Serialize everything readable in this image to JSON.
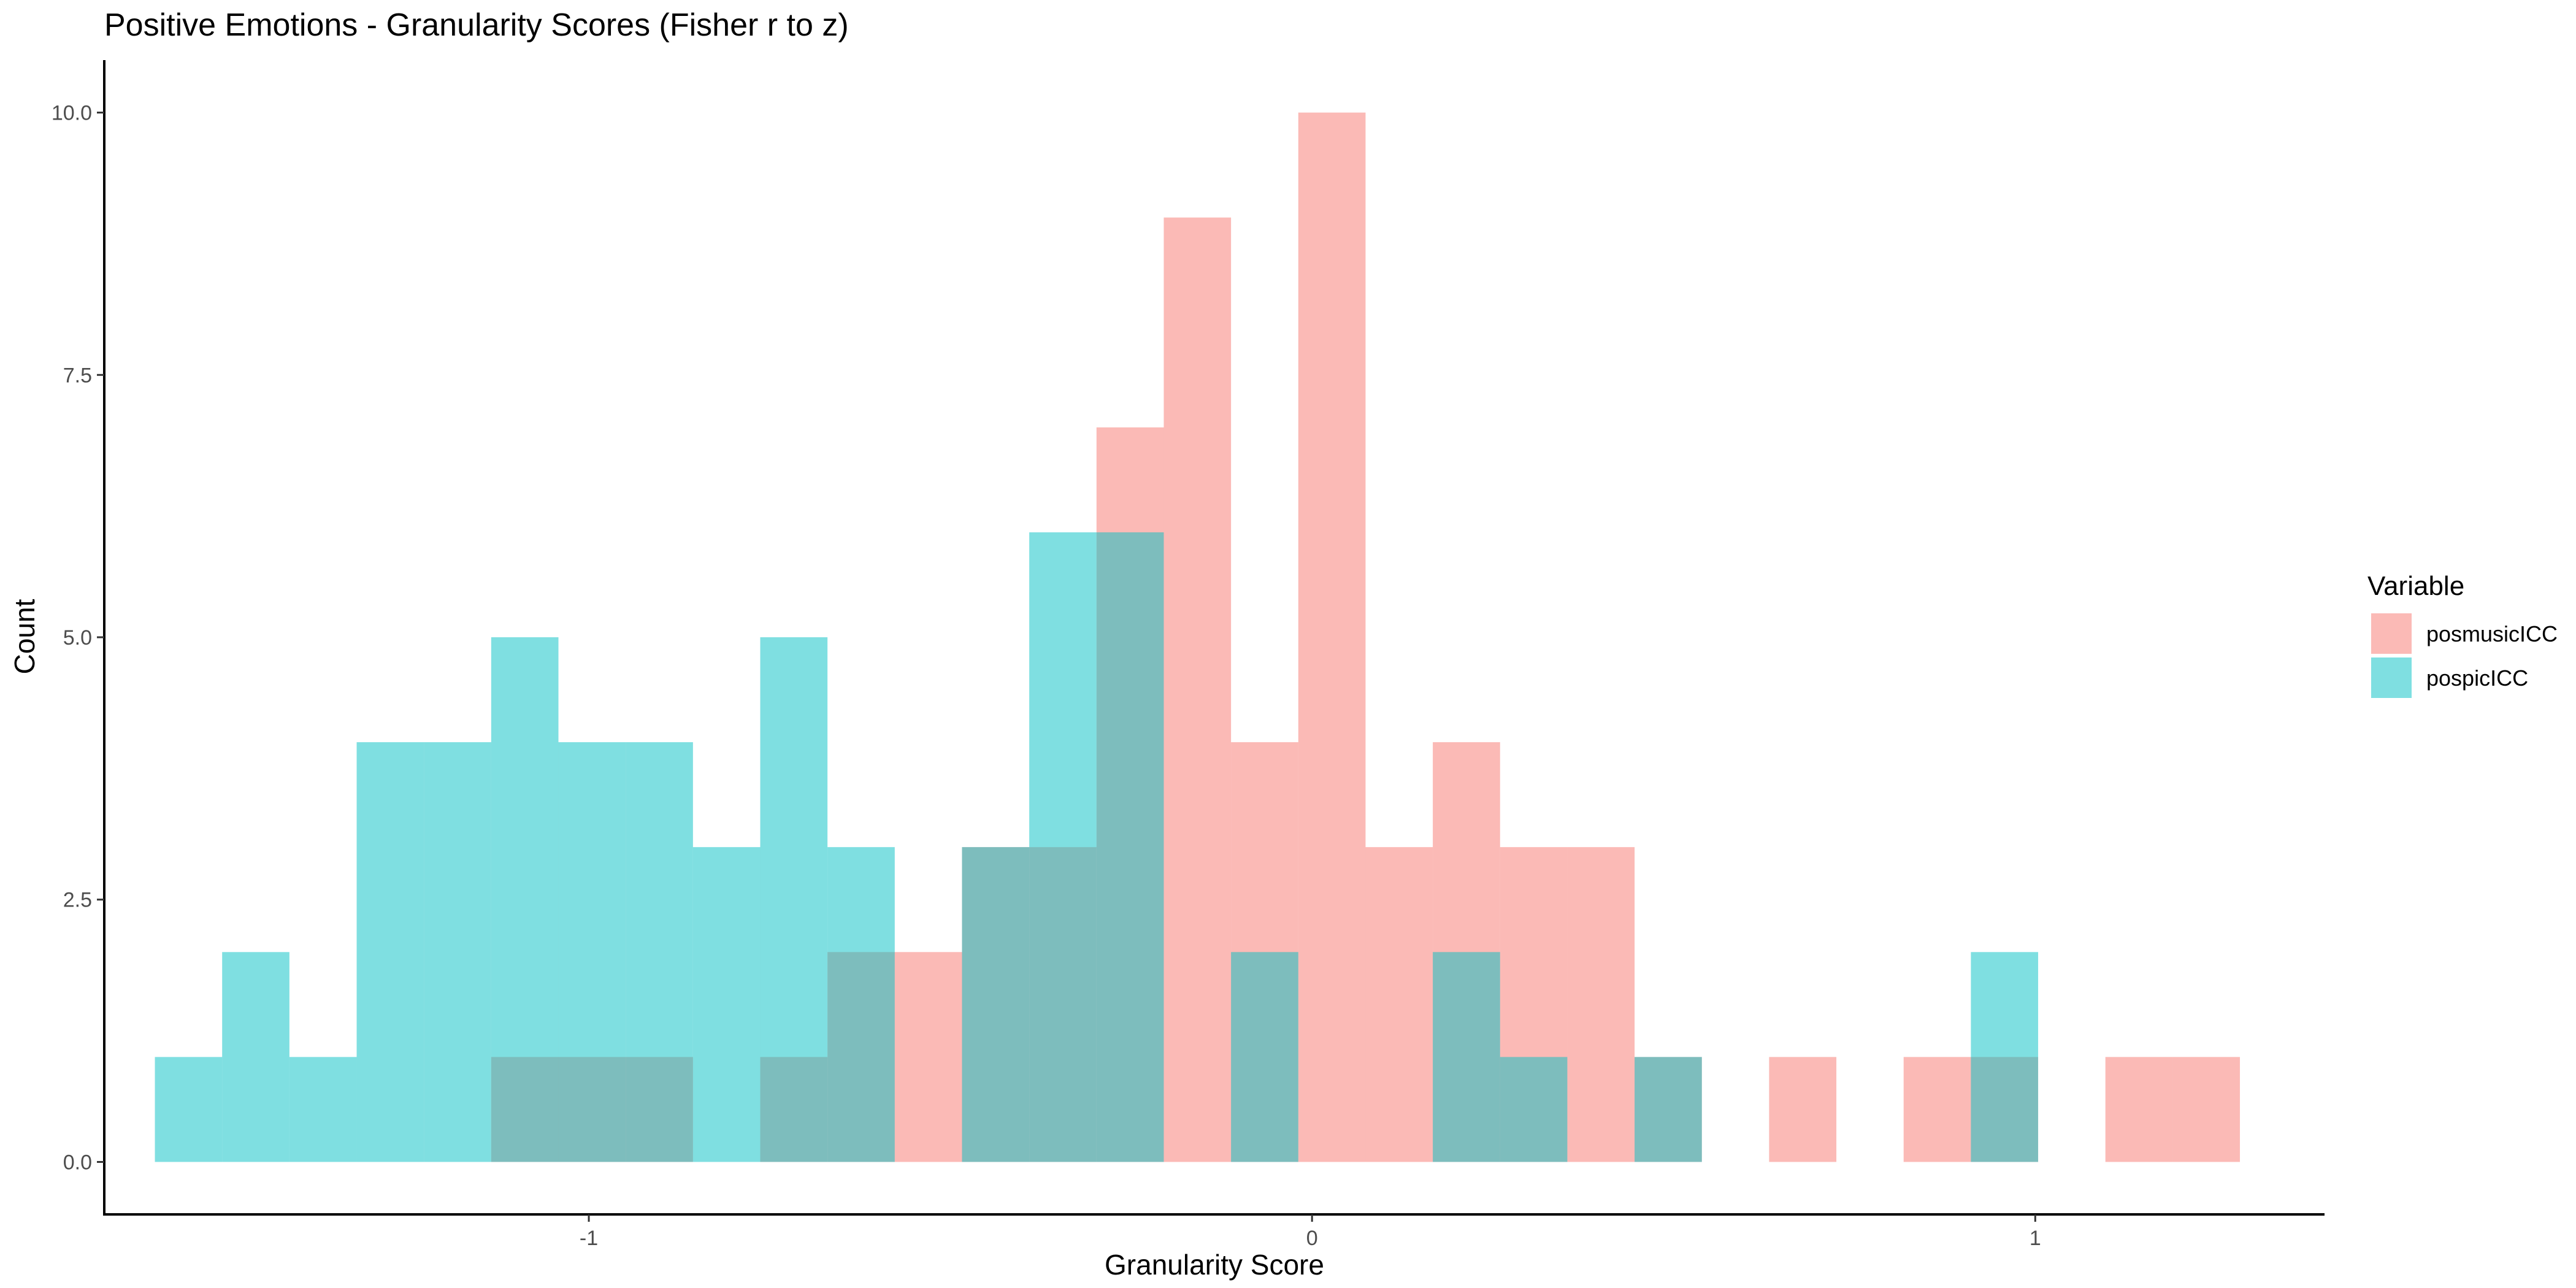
{
  "chart_data": {
    "type": "histogram",
    "title": "Positive Emotions - Granularity Scores (Fisher r to z)",
    "xlabel": "Granularity Score",
    "ylabel": "Count",
    "xlim": [
      -1.67,
      1.4
    ],
    "ylim": [
      -0.5,
      10.5
    ],
    "x_ticks": [
      {
        "value": -1,
        "label": "-1"
      },
      {
        "value": 0,
        "label": "0"
      },
      {
        "value": 1,
        "label": "1"
      }
    ],
    "y_ticks": [
      {
        "value": 0,
        "label": "0.0"
      },
      {
        "value": 2.5,
        "label": "2.5"
      },
      {
        "value": 5,
        "label": "5.0"
      },
      {
        "value": 7.5,
        "label": "7.5"
      },
      {
        "value": 10,
        "label": "10.0"
      }
    ],
    "grid": false,
    "bar_opacity": 0.5,
    "bin_edges": [
      -1.6,
      -1.507,
      -1.414,
      -1.321,
      -1.228,
      -1.135,
      -1.042,
      -0.949,
      -0.856,
      -0.763,
      -0.67,
      -0.577,
      -0.484,
      -0.391,
      -0.298,
      -0.205,
      -0.112,
      -0.019,
      0.074,
      0.167,
      0.26,
      0.353,
      0.446,
      0.539,
      0.632,
      0.725,
      0.818,
      0.911,
      1.004,
      1.097,
      1.19,
      1.283
    ],
    "series": [
      {
        "name": "posmusicICC",
        "color": "#F8766D",
        "counts": [
          0,
          0,
          0,
          0,
          0,
          1,
          1,
          1,
          0,
          1,
          2,
          2,
          3,
          3,
          7,
          9,
          4,
          10,
          3,
          4,
          3,
          3,
          1,
          0,
          1,
          0,
          1,
          1,
          0,
          1,
          1
        ]
      },
      {
        "name": "pospicICC",
        "color": "#00BFC4",
        "counts": [
          1,
          2,
          1,
          4,
          4,
          5,
          4,
          4,
          3,
          5,
          3,
          0,
          3,
          6,
          6,
          0,
          2,
          0,
          0,
          2,
          1,
          0,
          1,
          0,
          0,
          0,
          0,
          2,
          0,
          0,
          0
        ]
      }
    ],
    "legend": {
      "title": "Variable",
      "position": "right"
    }
  }
}
